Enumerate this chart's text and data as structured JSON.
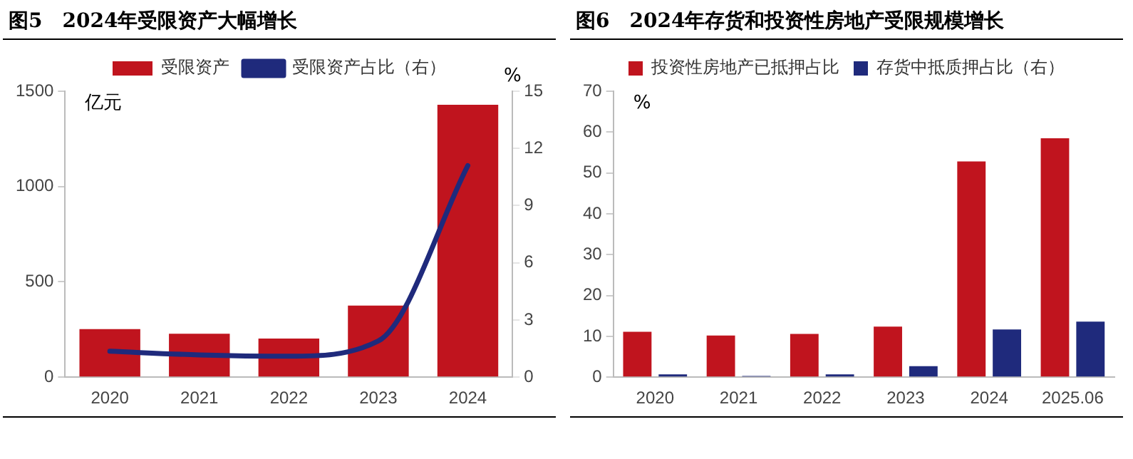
{
  "chart_data": [
    {
      "type": "bar",
      "title": "图5　2024年受限资产大幅增长",
      "ylabel": "亿元",
      "y2label": "%",
      "categories": [
        "2020",
        "2021",
        "2022",
        "2023",
        "2024"
      ],
      "series": [
        {
          "name": "受限资产",
          "color": "#c0141e",
          "values": [
            252,
            228,
            203,
            376,
            1429
          ]
        },
        {
          "name": "受限资产占比（右）",
          "type": "line",
          "axis": "y2",
          "color": "#1f2a7c",
          "values": [
            1.36,
            1.17,
            1.1,
            1.9,
            11.1
          ]
        }
      ],
      "ylim": [
        0,
        1500
      ],
      "yticks": [
        0,
        500,
        1000,
        1500
      ],
      "y2lim": [
        0,
        15
      ],
      "y2ticks": [
        0,
        3,
        6,
        9,
        12,
        15
      ],
      "grid": false,
      "legend": "top",
      "marker": "none"
    },
    {
      "type": "bar",
      "title": "图6　2024年存货和投资性房地产受限规模增长",
      "ylabel": "%",
      "categories": [
        "2020",
        "2021",
        "2022",
        "2023",
        "2024",
        "2025.06"
      ],
      "series": [
        {
          "name": "投资性房地产已抵押占比",
          "color": "#c0141e",
          "values": [
            11.1,
            10.2,
            10.6,
            12.4,
            52.8,
            58.5
          ]
        },
        {
          "name": "存货中抵质押占比（右）",
          "color": "#1f2a7c",
          "values": [
            0.7,
            0.3,
            0.7,
            2.7,
            11.7,
            13.6
          ]
        }
      ],
      "ylim": [
        0,
        70
      ],
      "yticks": [
        0,
        10,
        20,
        30,
        40,
        50,
        60,
        70
      ],
      "grid": false,
      "legend": "top"
    }
  ]
}
